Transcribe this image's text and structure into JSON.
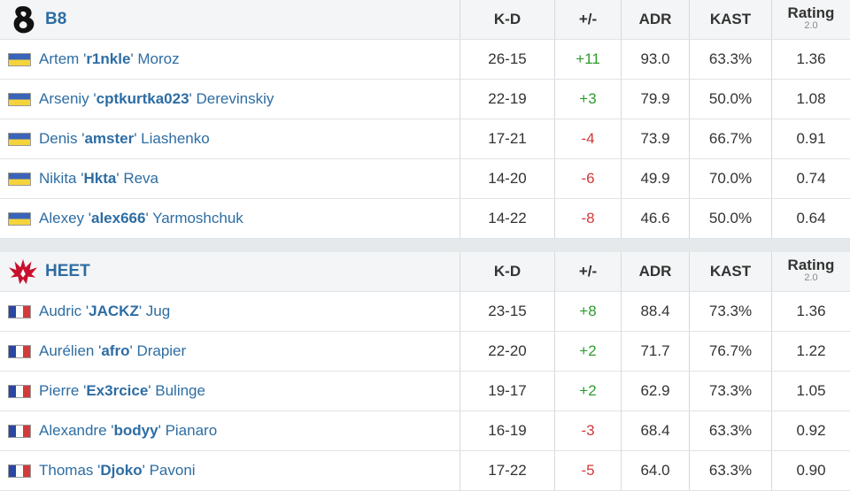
{
  "columns": {
    "kd": "K-D",
    "plus_minus": "+/-",
    "adr": "ADR",
    "kast": "KAST",
    "rating": "Rating",
    "rating_sub": "2.0"
  },
  "teams": [
    {
      "name": "B8",
      "logo_icon": "b8-logo-icon",
      "flag": "ua",
      "players": [
        {
          "first": "Artem",
          "nick": "r1nkle",
          "last": "Moroz",
          "kd": "26-15",
          "pm": "+11",
          "adr": "93.0",
          "kast": "63.3%",
          "rating": "1.36"
        },
        {
          "first": "Arseniy",
          "nick": "cptkurtka023",
          "last": "Derevinskiy",
          "kd": "22-19",
          "pm": "+3",
          "adr": "79.9",
          "kast": "50.0%",
          "rating": "1.08"
        },
        {
          "first": "Denis",
          "nick": "amster",
          "last": "Liashenko",
          "kd": "17-21",
          "pm": "-4",
          "adr": "73.9",
          "kast": "66.7%",
          "rating": "0.91"
        },
        {
          "first": "Nikita",
          "nick": "Hkta",
          "last": "Reva",
          "kd": "14-20",
          "pm": "-6",
          "adr": "49.9",
          "kast": "70.0%",
          "rating": "0.74"
        },
        {
          "first": "Alexey",
          "nick": "alex666",
          "last": "Yarmoshchuk",
          "kd": "14-22",
          "pm": "-8",
          "adr": "46.6",
          "kast": "50.0%",
          "rating": "0.64"
        }
      ]
    },
    {
      "name": "HEET",
      "logo_icon": "heet-logo-icon",
      "flag": "fr",
      "players": [
        {
          "first": "Audric",
          "nick": "JACKZ",
          "last": "Jug",
          "kd": "23-15",
          "pm": "+8",
          "adr": "88.4",
          "kast": "73.3%",
          "rating": "1.36"
        },
        {
          "first": "Aurélien",
          "nick": "afro",
          "last": "Drapier",
          "kd": "22-20",
          "pm": "+2",
          "adr": "71.7",
          "kast": "76.7%",
          "rating": "1.22"
        },
        {
          "first": "Pierre",
          "nick": "Ex3rcice",
          "last": "Bulinge",
          "kd": "19-17",
          "pm": "+2",
          "adr": "62.9",
          "kast": "73.3%",
          "rating": "1.05"
        },
        {
          "first": "Alexandre",
          "nick": "bodyy",
          "last": "Pianaro",
          "kd": "16-19",
          "pm": "-3",
          "adr": "68.4",
          "kast": "63.3%",
          "rating": "0.92"
        },
        {
          "first": "Thomas",
          "nick": "Djoko",
          "last": "Pavoni",
          "kd": "17-22",
          "pm": "-5",
          "adr": "64.0",
          "kast": "63.3%",
          "rating": "0.90"
        }
      ]
    }
  ],
  "colors": {
    "link": "#2d6da3",
    "positive": "#2e9c2e",
    "negative": "#d03a3a"
  }
}
